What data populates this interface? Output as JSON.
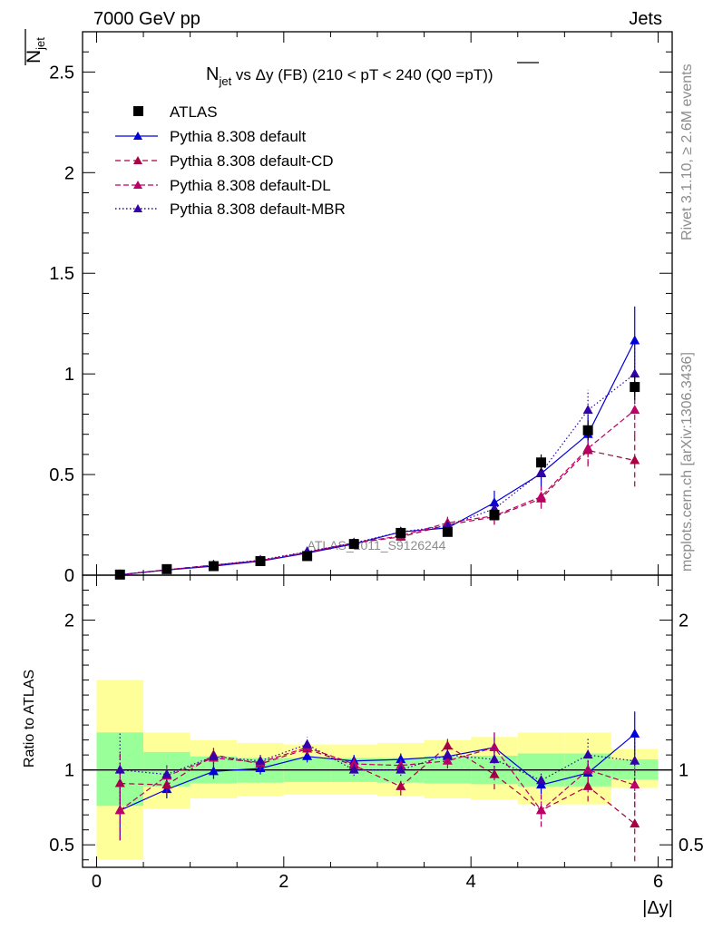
{
  "header": {
    "left": "7000 GeV pp",
    "right": "Jets"
  },
  "title": {
    "n": "N",
    "n_sub": "jet",
    "rest": " vs Δy (FB) (210 < pT < 240 (Q0 =",
    "pt_over": "pT",
    "close": "))"
  },
  "side_labels": {
    "rivet": "Rivet 3.1.10, ≥ 2.6M events",
    "mcplots": "mcplots.cern.ch [arXiv:1306.3436]"
  },
  "watermark": "ATLAS_2011_S9126244",
  "legend": [
    {
      "label": "ATLAS"
    },
    {
      "label": "Pythia 8.308 default"
    },
    {
      "label": "Pythia 8.308 default-CD"
    },
    {
      "label": "Pythia 8.308 default-DL"
    },
    {
      "label": "Pythia 8.308 default-MBR"
    }
  ],
  "colors": {
    "data": "#000000",
    "default": "#0000dd",
    "cd": "#aa0044",
    "dl": "#bb0066",
    "mbr": "#3300aa",
    "band_inner": "#99ff99",
    "band_outer": "#ffff99"
  },
  "chart_data": [
    {
      "type": "scatter",
      "ylabel": "N_jet",
      "xlim": [
        -0.15,
        6.15
      ],
      "ylim": [
        0,
        2.7
      ],
      "yticks": [
        "0",
        "0.5",
        "1",
        "1.5",
        "2",
        "2.5"
      ],
      "x": [
        0.25,
        0.75,
        1.25,
        1.75,
        2.25,
        2.75,
        3.25,
        3.75,
        4.25,
        4.75,
        5.25,
        5.75
      ],
      "series": [
        {
          "name": "ATLAS",
          "y": [
            0.003,
            0.03,
            0.045,
            0.07,
            0.095,
            0.155,
            0.21,
            0.215,
            0.3,
            0.56,
            0.72,
            0.935
          ],
          "err": [
            0.001,
            0.003,
            0.004,
            0.006,
            0.008,
            0.012,
            0.015,
            0.015,
            0.02,
            0.04,
            0.05,
            0.06
          ]
        },
        {
          "name": "Pythia 8.308 default",
          "y": [
            0.002,
            0.026,
            0.045,
            0.07,
            0.11,
            0.155,
            0.215,
            0.235,
            0.36,
            0.505,
            0.7,
            1.165
          ],
          "err": [
            0.001,
            0.005,
            0.006,
            0.008,
            0.012,
            0.015,
            0.02,
            0.03,
            0.06,
            0.08,
            0.1,
            0.17
          ]
        },
        {
          "name": "Pythia 8.308 default-CD",
          "y": [
            0.003,
            0.027,
            0.05,
            0.073,
            0.113,
            0.16,
            0.19,
            0.25,
            0.29,
            0.38,
            0.62,
            0.57
          ],
          "err": [
            0.001,
            0.005,
            0.006,
            0.008,
            0.012,
            0.015,
            0.02,
            0.03,
            0.04,
            0.05,
            0.08,
            0.13
          ]
        },
        {
          "name": "Pythia 8.308 default-DL",
          "y": [
            0.002,
            0.027,
            0.05,
            0.072,
            0.115,
            0.16,
            0.195,
            0.26,
            0.295,
            0.39,
            0.63,
            0.82
          ],
          "err": [
            0.001,
            0.005,
            0.006,
            0.008,
            0.012,
            0.015,
            0.02,
            0.03,
            0.04,
            0.05,
            0.08,
            0.13
          ]
        },
        {
          "name": "Pythia 8.308 default-MBR",
          "y": [
            0.003,
            0.026,
            0.05,
            0.075,
            0.117,
            0.16,
            0.215,
            0.245,
            0.33,
            0.51,
            0.82,
            1.0
          ],
          "err": [
            0.001,
            0.005,
            0.006,
            0.008,
            0.012,
            0.015,
            0.02,
            0.03,
            0.04,
            0.05,
            0.1,
            0.15
          ]
        }
      ]
    },
    {
      "type": "scatter",
      "xlabel": "|Δy|",
      "ylabel": "Ratio to ATLAS",
      "xlim": [
        -0.15,
        6.15
      ],
      "ylim": [
        0.35,
        2.3
      ],
      "xticks": [
        "0",
        "2",
        "4",
        "6"
      ],
      "yticks": [
        "0.5",
        "1",
        "2"
      ],
      "x": [
        0.25,
        0.75,
        1.25,
        1.75,
        2.25,
        2.75,
        3.25,
        3.75,
        4.25,
        4.75,
        5.25,
        5.75
      ],
      "bands": {
        "edges": [
          0,
          0.5,
          1,
          1.5,
          2,
          2.5,
          3,
          3.5,
          4,
          4.5,
          5,
          5.5,
          6
        ],
        "inner_lo": [
          0.76,
          0.89,
          0.91,
          0.915,
          0.92,
          0.92,
          0.915,
          0.91,
          0.905,
          0.89,
          0.89,
          0.935
        ],
        "inner_hi": [
          1.25,
          1.12,
          1.09,
          1.08,
          1.08,
          1.08,
          1.08,
          1.09,
          1.095,
          1.11,
          1.11,
          1.07
        ],
        "outer_lo": [
          0.4,
          0.74,
          0.81,
          0.825,
          0.835,
          0.835,
          0.825,
          0.81,
          0.8,
          0.77,
          0.77,
          0.88
        ],
        "outer_hi": [
          1.6,
          1.25,
          1.2,
          1.18,
          1.17,
          1.17,
          1.18,
          1.2,
          1.22,
          1.25,
          1.25,
          1.14
        ]
      },
      "series": [
        {
          "name": "Pythia 8.308 default",
          "y": [
            0.73,
            0.87,
            0.99,
            1.01,
            1.09,
            1.06,
            1.07,
            1.09,
            1.15,
            0.9,
            0.98,
            1.24
          ],
          "err": [
            0.2,
            0.06,
            0.05,
            0.04,
            0.04,
            0.04,
            0.04,
            0.05,
            0.1,
            0.06,
            0.08,
            0.15
          ]
        },
        {
          "name": "Pythia 8.308 default-CD",
          "y": [
            0.91,
            0.9,
            1.1,
            1.04,
            1.14,
            1.03,
            0.89,
            1.16,
            0.97,
            0.73,
            0.89,
            0.64
          ],
          "err": [
            0.2,
            0.06,
            0.05,
            0.04,
            0.04,
            0.04,
            0.06,
            0.05,
            0.1,
            0.11,
            0.1,
            0.25
          ]
        },
        {
          "name": "Pythia 8.308 default-DL",
          "y": [
            0.73,
            0.96,
            1.08,
            1.05,
            1.15,
            1.04,
            1.03,
            1.06,
            1.15,
            0.73,
            1.0,
            0.9
          ],
          "err": [
            0.2,
            0.06,
            0.05,
            0.04,
            0.04,
            0.04,
            0.04,
            0.05,
            0.1,
            0.06,
            0.08,
            0.15
          ]
        },
        {
          "name": "Pythia 8.308 default-MBR",
          "y": [
            1.0,
            0.97,
            1.09,
            1.06,
            1.17,
            1.0,
            1.0,
            1.1,
            1.07,
            0.93,
            1.1,
            1.06
          ],
          "err": [
            0.25,
            0.07,
            0.05,
            0.04,
            0.05,
            0.04,
            0.04,
            0.05,
            0.1,
            0.06,
            0.12,
            0.15
          ]
        }
      ]
    }
  ]
}
